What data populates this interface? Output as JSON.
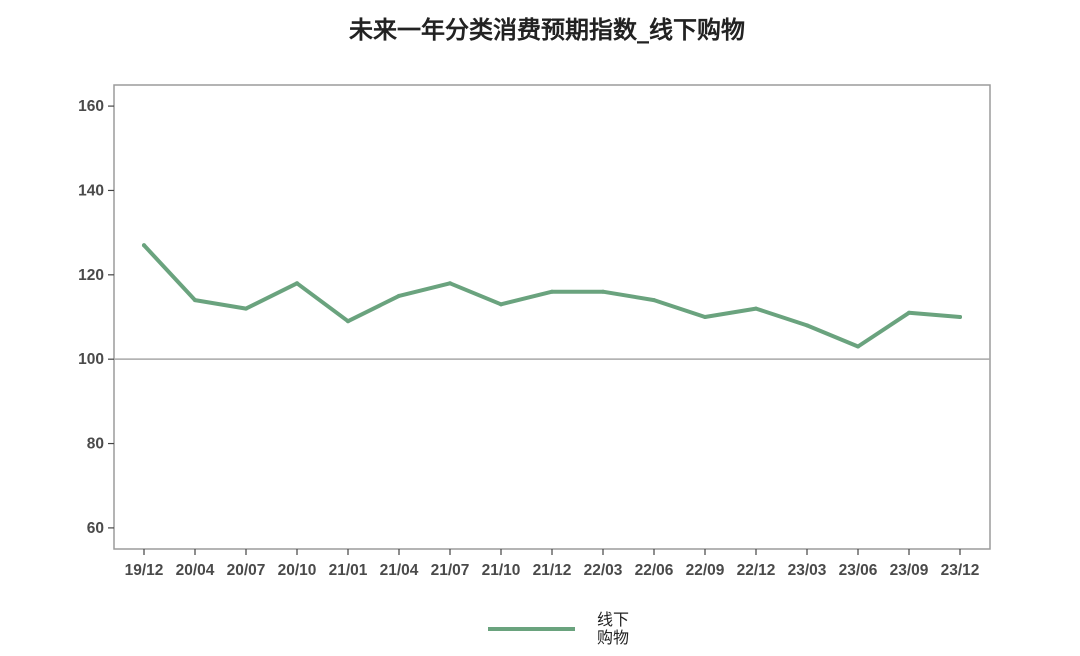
{
  "chart_data": {
    "type": "line",
    "title": "未来一年分类消费预期指数_线下购物",
    "xlabel": "",
    "ylabel": "",
    "ylim": [
      55,
      165
    ],
    "yticks": [
      60,
      80,
      100,
      120,
      140,
      160
    ],
    "reference_line": 100,
    "x": [
      "19/12",
      "20/04",
      "20/07",
      "20/10",
      "21/01",
      "21/04",
      "21/07",
      "21/10",
      "21/12",
      "22/03",
      "22/06",
      "22/09",
      "22/12",
      "23/03",
      "23/06",
      "23/09",
      "23/12"
    ],
    "series": [
      {
        "name_lines": [
          "线下",
          "购物"
        ],
        "color": "#6aa37e",
        "values": [
          127,
          114,
          112,
          118,
          109,
          115,
          118,
          113,
          116,
          116,
          114,
          110,
          112,
          108,
          103,
          111,
          110
        ]
      }
    ],
    "legend_position": "bottom",
    "grid": false
  }
}
